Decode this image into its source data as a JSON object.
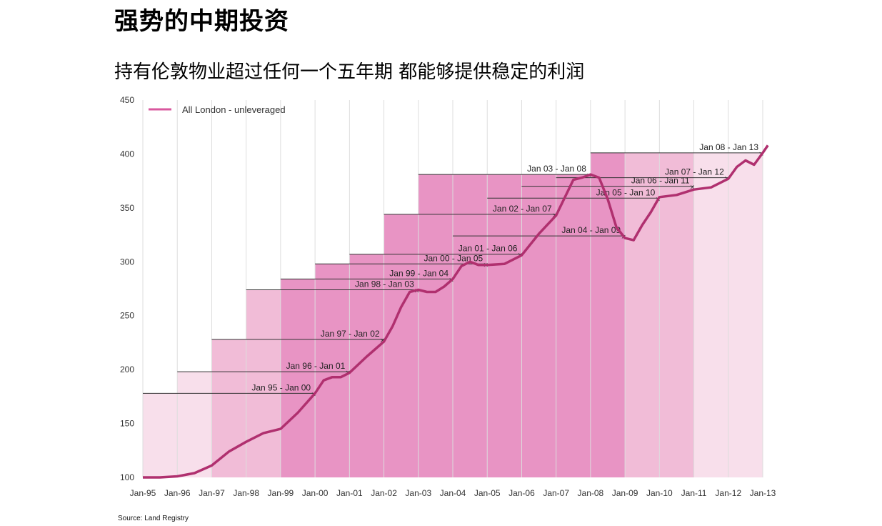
{
  "title": "强势的中期投资",
  "subtitle": "持有伦敦物业超过任何一个五年期 都能够提供稳定的利润",
  "source": "Source: Land Registry",
  "colors": {
    "line": "#b0306f",
    "legend_line": "#d9589e",
    "band_light": "#f7dbe9",
    "band_medium": "#f0b5d3",
    "band_dark": "#e588be",
    "grid": "#dddddd",
    "annotation": "#333333"
  },
  "chart_data": {
    "type": "line",
    "title": "",
    "xlabel": "",
    "ylabel": "",
    "ylim": [
      100,
      450
    ],
    "yticks": [
      100,
      150,
      200,
      250,
      300,
      350,
      400,
      450
    ],
    "xticks": [
      "Jan-95",
      "Jan-96",
      "Jan-97",
      "Jan-98",
      "Jan-99",
      "Jan-00",
      "Jan-01",
      "Jan-02",
      "Jan-03",
      "Jan-04",
      "Jan-05",
      "Jan-06",
      "Jan-07",
      "Jan-08",
      "Jan-09",
      "Jan-10",
      "Jan-11",
      "Jan-12",
      "Jan-13"
    ],
    "grid": "vertical",
    "legend": {
      "position": "top-left",
      "entries": [
        "All London - unleveraged"
      ]
    },
    "series": [
      {
        "name": "All London - unleveraged",
        "x": [
          1995.0,
          1995.5,
          1996.0,
          1996.5,
          1997.0,
          1997.5,
          1998.0,
          1998.5,
          1999.0,
          1999.5,
          2000.0,
          2000.25,
          2000.5,
          2000.75,
          2001.0,
          2001.5,
          2002.0,
          2002.25,
          2002.5,
          2002.75,
          2003.0,
          2003.25,
          2003.5,
          2003.75,
          2004.0,
          2004.25,
          2004.5,
          2004.75,
          2005.0,
          2005.5,
          2006.0,
          2006.5,
          2007.0,
          2007.5,
          2007.75,
          2008.0,
          2008.25,
          2008.5,
          2008.75,
          2009.0,
          2009.25,
          2009.5,
          2009.75,
          2010.0,
          2010.5,
          2011.0,
          2011.5,
          2012.0,
          2012.25,
          2012.5,
          2012.75,
          2013.0,
          2013.15
        ],
        "values": [
          100,
          100,
          101,
          104,
          111,
          124,
          133,
          141,
          145,
          160,
          178,
          190,
          193,
          193,
          197,
          212,
          226,
          240,
          258,
          272,
          274,
          272,
          272,
          277,
          284,
          296,
          300,
          297,
          297,
          298,
          306,
          326,
          343,
          376,
          378,
          381,
          378,
          358,
          332,
          322,
          320,
          334,
          346,
          360,
          362,
          367,
          369,
          377,
          388,
          394,
          390,
          401,
          408
        ]
      }
    ],
    "periods": [
      {
        "label": "Jan 95 - Jan 00",
        "start": 1995,
        "end": 2000,
        "level": 178
      },
      {
        "label": "Jan 96 - Jan 01",
        "start": 1996,
        "end": 2001,
        "level": 198
      },
      {
        "label": "Jan 97 - Jan 02",
        "start": 1997,
        "end": 2002,
        "level": 228
      },
      {
        "label": "Jan 98 - Jan 03",
        "start": 1998,
        "end": 2003,
        "level": 274
      },
      {
        "label": "Jan 99 - Jan 04",
        "start": 1999,
        "end": 2004,
        "level": 284
      },
      {
        "label": "Jan 00 - Jan 05",
        "start": 2000,
        "end": 2005,
        "level": 298
      },
      {
        "label": "Jan 01 - Jan 06",
        "start": 2001,
        "end": 2006,
        "level": 307
      },
      {
        "label": "Jan 02 - Jan 07",
        "start": 2002,
        "end": 2007,
        "level": 344
      },
      {
        "label": "Jan 03 - Jan 08",
        "start": 2003,
        "end": 2008,
        "level": 381
      },
      {
        "label": "Jan 04 - Jan 09",
        "start": 2004,
        "end": 2009,
        "level": 324
      },
      {
        "label": "Jan 05 - Jan 10",
        "start": 2005,
        "end": 2010,
        "level": 359
      },
      {
        "label": "Jan 06 - Jan 11",
        "start": 2006,
        "end": 2011,
        "level": 370
      },
      {
        "label": "Jan 07 - Jan 12",
        "start": 2007,
        "end": 2012,
        "level": 378
      },
      {
        "label": "Jan 08 - Jan 13",
        "start": 2008,
        "end": 2013,
        "level": 401
      }
    ]
  }
}
